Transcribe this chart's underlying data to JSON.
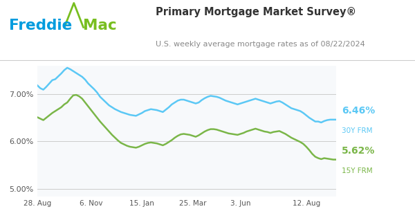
{
  "title": "Primary Mortgage Market Survey®",
  "subtitle": "U.S. weekly average mortgage rates as of 08/22/2024",
  "plot_bg_color": "#f7f9fb",
  "x_labels": [
    "28. Aug",
    "6. Nov",
    "15. Jan",
    "25. Mar",
    "3. Jun",
    "12. Aug"
  ],
  "ylim": [
    4.85,
    7.6
  ],
  "rate_30y_label": "6.46%",
  "rate_30y_sub": "30Y FRM",
  "rate_15y_label": "5.62%",
  "rate_15y_sub": "15Y FRM",
  "color_30y": "#5bc8f5",
  "color_15y": "#7ab648",
  "freddie_blue": "#009cde",
  "freddie_green": "#78be20",
  "title_color": "#333333",
  "subtitle_color": "#888888",
  "tick_positions": [
    0,
    18,
    35,
    52,
    68,
    90
  ],
  "y30y": [
    7.18,
    7.12,
    7.09,
    7.15,
    7.22,
    7.29,
    7.31,
    7.37,
    7.43,
    7.5,
    7.55,
    7.52,
    7.48,
    7.44,
    7.4,
    7.36,
    7.3,
    7.22,
    7.16,
    7.1,
    7.03,
    6.94,
    6.88,
    6.82,
    6.76,
    6.72,
    6.68,
    6.65,
    6.62,
    6.6,
    6.58,
    6.56,
    6.55,
    6.54,
    6.57,
    6.6,
    6.64,
    6.66,
    6.68,
    6.67,
    6.66,
    6.64,
    6.62,
    6.67,
    6.72,
    6.78,
    6.82,
    6.86,
    6.88,
    6.88,
    6.86,
    6.84,
    6.82,
    6.8,
    6.82,
    6.87,
    6.91,
    6.94,
    6.96,
    6.95,
    6.94,
    6.92,
    6.89,
    6.86,
    6.84,
    6.82,
    6.8,
    6.78,
    6.8,
    6.82,
    6.84,
    6.86,
    6.88,
    6.9,
    6.88,
    6.86,
    6.84,
    6.82,
    6.8,
    6.82,
    6.84,
    6.85,
    6.82,
    6.78,
    6.74,
    6.7,
    6.68,
    6.66,
    6.64,
    6.6,
    6.55,
    6.5,
    6.46,
    6.42,
    6.42,
    6.4,
    6.43,
    6.45,
    6.46,
    6.46,
    6.46
  ],
  "y15y": [
    6.51,
    6.48,
    6.45,
    6.5,
    6.55,
    6.6,
    6.64,
    6.68,
    6.72,
    6.78,
    6.82,
    6.9,
    6.97,
    6.98,
    6.95,
    6.9,
    6.82,
    6.74,
    6.66,
    6.58,
    6.5,
    6.42,
    6.35,
    6.28,
    6.21,
    6.14,
    6.08,
    6.02,
    5.97,
    5.94,
    5.91,
    5.89,
    5.88,
    5.87,
    5.89,
    5.92,
    5.95,
    5.97,
    5.98,
    5.97,
    5.96,
    5.94,
    5.92,
    5.95,
    5.99,
    6.03,
    6.08,
    6.12,
    6.15,
    6.16,
    6.15,
    6.14,
    6.12,
    6.1,
    6.13,
    6.17,
    6.21,
    6.24,
    6.26,
    6.26,
    6.25,
    6.23,
    6.21,
    6.19,
    6.17,
    6.16,
    6.15,
    6.14,
    6.16,
    6.18,
    6.21,
    6.23,
    6.25,
    6.27,
    6.25,
    6.23,
    6.21,
    6.2,
    6.18,
    6.2,
    6.21,
    6.22,
    6.19,
    6.16,
    6.12,
    6.08,
    6.05,
    6.02,
    5.99,
    5.95,
    5.89,
    5.82,
    5.74,
    5.68,
    5.65,
    5.63,
    5.65,
    5.64,
    5.63,
    5.62,
    5.62
  ]
}
